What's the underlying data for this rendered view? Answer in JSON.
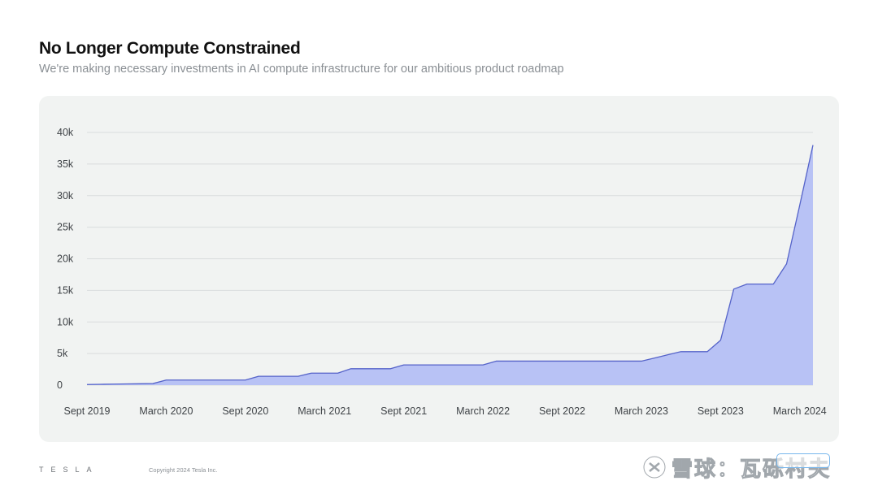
{
  "header": {
    "title": "No Longer Compute Constrained",
    "subtitle": "We're making necessary investments in AI compute infrastructure for our ambitious product roadmap"
  },
  "footer": {
    "logo_text": "TESLA",
    "copyright": "Copyright 2024 Tesla Inc."
  },
  "watermark": {
    "text": "雪球：瓦砾村夫"
  },
  "colors": {
    "card_bg": "#f1f3f2",
    "area_fill": "#b8c2f5",
    "area_stroke": "#5563c9",
    "grid": "#d9dcdd"
  },
  "chart_data": {
    "type": "area",
    "title": "",
    "xlabel": "",
    "ylabel": "",
    "ylim": [
      0,
      40000
    ],
    "yticks": [
      0,
      5000,
      10000,
      15000,
      20000,
      25000,
      30000,
      35000,
      40000
    ],
    "ytick_labels": [
      "0",
      "5k",
      "10k",
      "15k",
      "20k",
      "25k",
      "30k",
      "35k",
      "40k"
    ],
    "xtick_labels": [
      "Sept 2019",
      "March 2020",
      "Sept 2020",
      "March 2021",
      "Sept 2021",
      "March 2022",
      "Sept 2022",
      "March 2023",
      "Sept 2023",
      "March 2024"
    ],
    "grid": true,
    "legend": "none",
    "x": [
      "2019-09",
      "2019-10",
      "2019-11",
      "2019-12",
      "2020-01",
      "2020-02",
      "2020-03",
      "2020-04",
      "2020-05",
      "2020-06",
      "2020-07",
      "2020-08",
      "2020-09",
      "2020-10",
      "2020-11",
      "2020-12",
      "2021-01",
      "2021-02",
      "2021-03",
      "2021-04",
      "2021-05",
      "2021-06",
      "2021-07",
      "2021-08",
      "2021-09",
      "2021-10",
      "2021-11",
      "2021-12",
      "2022-01",
      "2022-02",
      "2022-03",
      "2022-04",
      "2022-05",
      "2022-06",
      "2022-07",
      "2022-08",
      "2022-09",
      "2022-10",
      "2022-11",
      "2022-12",
      "2023-01",
      "2023-02",
      "2023-03",
      "2023-04",
      "2023-05",
      "2023-06",
      "2023-07",
      "2023-08",
      "2023-09",
      "2023-10",
      "2023-11",
      "2023-12",
      "2024-01",
      "2024-02",
      "2024-03",
      "2024-04"
    ],
    "values": [
      100,
      130,
      160,
      190,
      220,
      250,
      800,
      800,
      800,
      800,
      800,
      800,
      800,
      1400,
      1400,
      1400,
      1400,
      1900,
      1900,
      1900,
      2600,
      2600,
      2600,
      2600,
      3200,
      3200,
      3200,
      3200,
      3200,
      3200,
      3200,
      3800,
      3800,
      3800,
      3800,
      3800,
      3800,
      3800,
      3800,
      3800,
      3800,
      3800,
      3800,
      4300,
      4800,
      5300,
      5300,
      5300,
      7100,
      15200,
      16000,
      16000,
      16000,
      19200,
      28500,
      38000
    ]
  }
}
